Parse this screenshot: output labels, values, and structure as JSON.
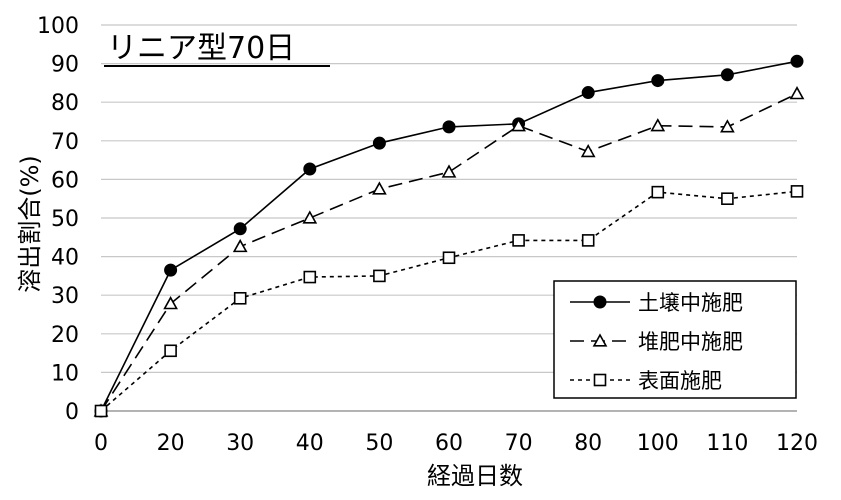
{
  "chart_data": {
    "type": "line",
    "title": "リニア型70日",
    "xlabel": "経過日数",
    "ylabel": "溶出割合(%)",
    "categories": [
      "0",
      "20",
      "30",
      "40",
      "50",
      "60",
      "70",
      "80",
      "100",
      "110",
      "120"
    ],
    "ylim": [
      0,
      100
    ],
    "yticks": [
      0,
      10,
      20,
      30,
      40,
      50,
      60,
      70,
      80,
      90,
      100
    ],
    "grid": true,
    "legend_position": "bottom-right",
    "series": [
      {
        "name": "土壌中施肥",
        "marker": "filled-circle",
        "line": "solid",
        "values": [
          0,
          36.5,
          47.2,
          62.7,
          69.4,
          73.6,
          74.4,
          82.5,
          85.6,
          87.1,
          90.6
        ]
      },
      {
        "name": "堆肥中施肥",
        "marker": "open-triangle",
        "line": "long-dash",
        "values": [
          0,
          27.8,
          42.6,
          50.0,
          57.5,
          61.9,
          73.9,
          67.2,
          73.9,
          73.6,
          82.2
        ]
      },
      {
        "name": "表面施肥",
        "marker": "open-square",
        "line": "short-dash",
        "values": [
          0,
          15.6,
          29.2,
          34.7,
          35.0,
          39.7,
          44.2,
          44.2,
          56.7,
          55.0,
          56.9
        ]
      }
    ]
  }
}
